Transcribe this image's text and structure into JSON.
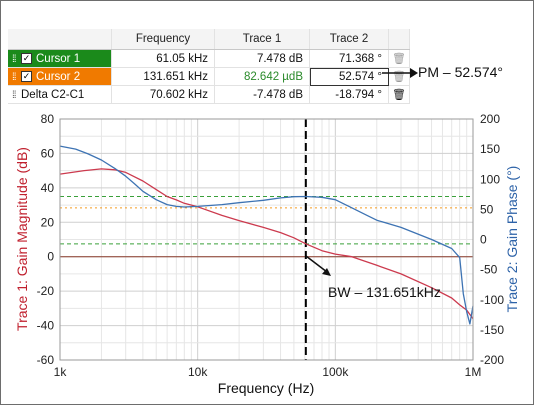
{
  "table": {
    "headers": [
      "",
      "Frequency",
      "Trace 1",
      "Trace 2"
    ],
    "rows": [
      {
        "name": "Cursor 1",
        "color": "#1b8a1b",
        "checked": true,
        "frequency": "61.05 kHz",
        "trace1": "7.478 dB",
        "trace2": "71.368 °"
      },
      {
        "name": "Cursor 2",
        "color": "#f07a00",
        "checked": true,
        "frequency": "131.651 kHz",
        "trace1": "82.642 µdB",
        "trace2": "52.574 °"
      },
      {
        "name": "Delta C2-C1",
        "color": "",
        "checked": false,
        "frequency": "70.602 kHz",
        "trace1": "-7.478 dB",
        "trace2": "-18.794 °"
      }
    ]
  },
  "annotations": {
    "pm": "PM – 52.574°",
    "bw": "BW – 131.651kHz"
  },
  "chart_data": {
    "type": "line",
    "xlabel": "Frequency (Hz)",
    "ylabel_left": "Trace 1: Gain Magnitude (dB)",
    "ylabel_right": "Trace 2: Gain Phase (°)",
    "x_scale": "log",
    "xlim": [
      1000,
      1000000
    ],
    "x_ticks": [
      "1k",
      "10k",
      "100k",
      "1M"
    ],
    "ylim_left": [
      -60,
      80
    ],
    "left_ticks": [
      "80",
      "60",
      "40",
      "20",
      "0",
      "-20",
      "-40",
      "-60"
    ],
    "ylim_right": [
      -200,
      200
    ],
    "right_ticks": [
      "200",
      "150",
      "100",
      "50",
      "0",
      "-50",
      "-100",
      "-150",
      "-200"
    ],
    "grid": true,
    "colors": {
      "trace1": "#cc3a4e",
      "trace2": "#3d73b3",
      "left_axis": "#c0202e",
      "right_axis": "#2e63a8",
      "cursor1_ref": "#3aa03a",
      "cursor2_ref": "#f59a1e",
      "cursor_line": "#000000"
    },
    "cursor_freq": 61050,
    "cursor_ref_levels": {
      "trace1_cursor1": 7.478,
      "trace1_cursor2": 0,
      "trace2_cursor1": 71.368,
      "trace2_cursor2": 52.574
    },
    "series": [
      {
        "axis": "left",
        "x": [
          1000,
          1500,
          2000,
          2500,
          3000,
          4000,
          5000,
          6000,
          7000,
          8000,
          10000,
          15000,
          20000,
          30000,
          40000,
          50000,
          61050,
          80000,
          100000,
          131651,
          200000,
          300000,
          500000,
          700000,
          800000,
          900000,
          1000000
        ],
        "y": [
          48,
          50,
          51,
          50.5,
          49,
          44,
          39,
          35,
          33,
          31,
          29,
          24,
          21,
          17,
          14,
          11,
          7.478,
          3.5,
          1.5,
          0,
          -5,
          -10,
          -18,
          -24,
          -28,
          -31,
          -36
        ]
      },
      {
        "axis": "right",
        "x": [
          1000,
          1300,
          1600,
          2000,
          2500,
          3000,
          3500,
          4000,
          5000,
          6000,
          7000,
          8000,
          10000,
          15000,
          20000,
          30000,
          40000,
          50000,
          61050,
          80000,
          100000,
          131651,
          170000,
          200000,
          300000,
          500000,
          700000,
          800000,
          850000,
          900000,
          950000,
          1000000
        ],
        "y": [
          155,
          150,
          142,
          132,
          118,
          105,
          92,
          80,
          66,
          58,
          55,
          54,
          55,
          58,
          61,
          65,
          69,
          71,
          71.368,
          70,
          66,
          52.574,
          40,
          32,
          20,
          0,
          -15,
          -30,
          -90,
          -120,
          -140,
          -110
        ]
      }
    ]
  }
}
